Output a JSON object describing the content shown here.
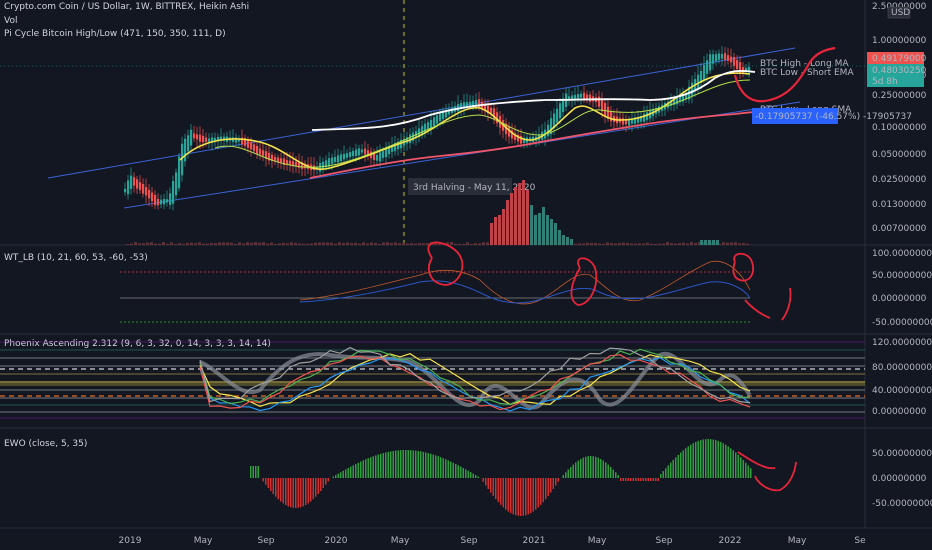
{
  "header": {
    "symbol_line": "Crypto.com Coin / US Dollar, 1W, BITTREX, Heikin Ashi",
    "vol_label": "Vol",
    "pi_cycle_label": "Pi Cycle Bitcoin High/Low (471, 150, 350, 111, D)",
    "currency": "USD"
  },
  "price_pane": {
    "price_axis": [
      "2.50000000",
      "1.00000000",
      "0.50000000",
      "0.25000000",
      "0.10000000",
      "0.05000000",
      "0.02500000",
      "0.01300000",
      "0.00700000"
    ],
    "current_price_tag": "0.49179000",
    "secondary_price_tag": "0.48030250",
    "countdown_tag": "5d 8h",
    "ma_labels": [
      "BTC High - Long MA",
      "BTC Low - Short EMA",
      "BTC Low - Long SMA"
    ],
    "measure_label": "-0.17905737 (-46.57%) -17905737",
    "halving_label": "3rd Halving - May 11, 2020"
  },
  "wt_pane": {
    "title": "WT_LB (10, 21, 60, 53, -60, -53)",
    "axis": [
      "100.00000000",
      "50.00000000",
      "0.00000000",
      "-50.00000000"
    ]
  },
  "phoenix_pane": {
    "title": "Phoenix Ascending 2.312 (9, 6, 3, 32, 0, 14, 3, 3, 3, 14, 14)",
    "axis": [
      "120.00000000",
      "80.00000000",
      "40.00000000",
      "0.00000000"
    ]
  },
  "ewo_pane": {
    "title": "EWO (close, 5, 35)",
    "axis": [
      "50.00000000",
      "0.00000000",
      "-50.00000000"
    ]
  },
  "time_axis": [
    "2019",
    "May",
    "Sep",
    "2020",
    "May",
    "Sep",
    "2021",
    "May",
    "Sep",
    "2022",
    "May",
    "Se"
  ],
  "colors": {
    "background": "#131722",
    "bull": "#26a69a",
    "bear": "#ef5350",
    "channel": "#2962ff",
    "white_ma": "#ffffff",
    "yellow_ma": "#f7e34a",
    "red_ma": "#f0566a",
    "annotation": "#e8253a"
  },
  "chart_data": {
    "type": "candlestick",
    "scale": "log",
    "series": [
      {
        "name": "BTC High - Long MA"
      },
      {
        "name": "BTC Low - Short EMA"
      },
      {
        "name": "BTC Low - Long SMA"
      }
    ]
  }
}
